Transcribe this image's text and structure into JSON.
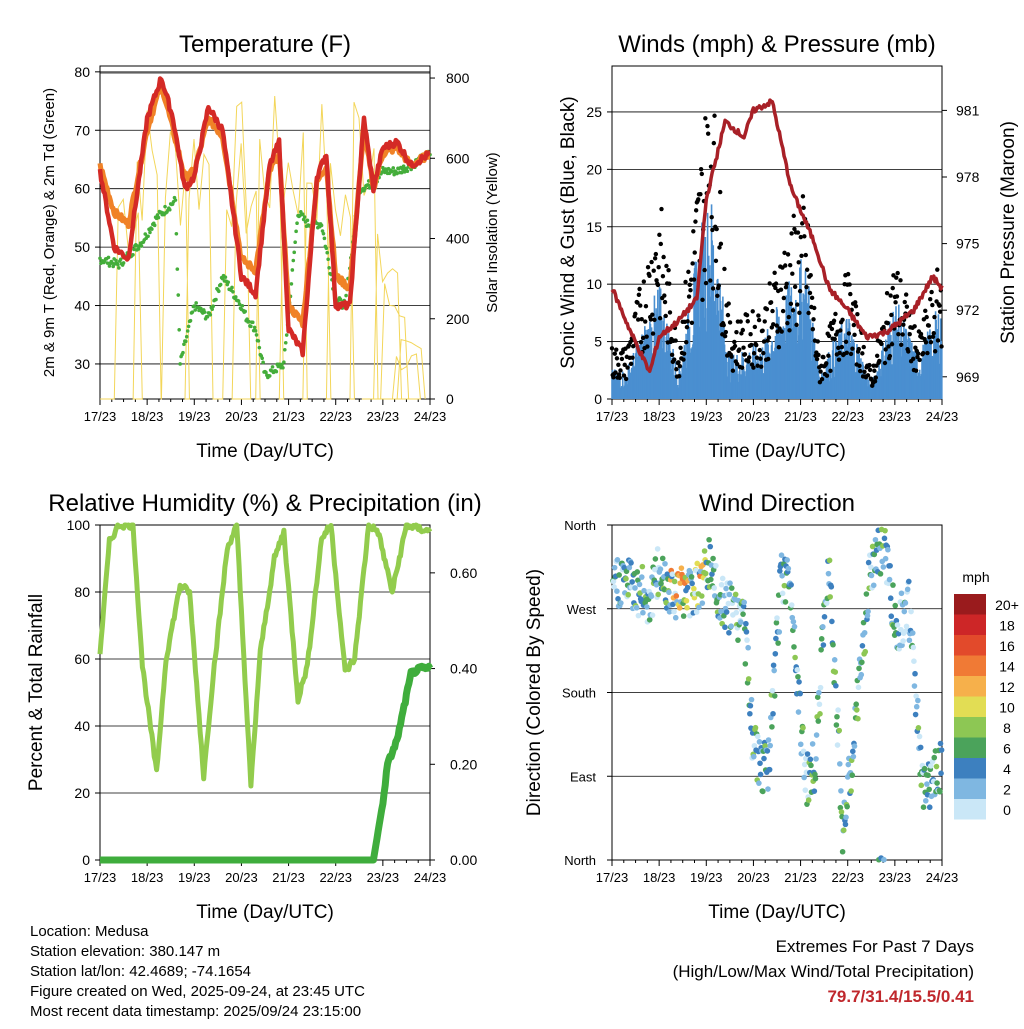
{
  "chart_data": [
    {
      "id": "temperature",
      "type": "line",
      "title": "Temperature (F)",
      "xlabel": "Time (Day/UTC)",
      "ylabel_left": "2m & 9m T (Red, Orange) & 2m Td (Green)",
      "ylabel_right": "Solar Insolation (Yellow)",
      "ylim": [
        24,
        81
      ],
      "y2lim": [
        0,
        830
      ],
      "yticks": [
        30,
        40,
        50,
        60,
        70,
        80
      ],
      "y2ticks": [
        0,
        200,
        400,
        600,
        800
      ],
      "xticks": [
        "17/23",
        "18/23",
        "19/23",
        "20/23",
        "21/23",
        "22/23",
        "23/23",
        "24/23"
      ],
      "series": [
        {
          "name": "2m T",
          "color": "#d42a26",
          "days": [
            0,
            0.3,
            0.6,
            1.0,
            1.3,
            1.55,
            1.8,
            2.0,
            2.3,
            2.6,
            3.0,
            3.3,
            3.6,
            3.8,
            4.0,
            4.3,
            4.6,
            4.8,
            5.0,
            5.3,
            5.6,
            5.8,
            6.0,
            6.3,
            6.6,
            7.0
          ],
          "values": [
            63,
            50,
            48,
            72,
            79,
            72,
            60,
            62,
            74,
            70,
            45,
            42,
            64,
            68,
            36,
            32,
            62,
            66,
            40,
            40,
            72,
            60,
            67,
            68,
            64,
            66
          ]
        },
        {
          "name": "9m T",
          "color": "#f08227",
          "days": [
            0,
            0.3,
            0.6,
            1.0,
            1.3,
            1.55,
            1.8,
            2.0,
            2.3,
            2.6,
            3.0,
            3.3,
            3.6,
            3.8,
            4.0,
            4.3,
            4.6,
            4.8,
            5.0,
            5.3,
            5.6,
            5.8,
            6.0,
            6.3,
            6.6,
            7.0
          ],
          "values": [
            64,
            56,
            54,
            70,
            78,
            70,
            62,
            63,
            72,
            69,
            48,
            46,
            63,
            66,
            40,
            37,
            61,
            64,
            45,
            43,
            70,
            60,
            66,
            67,
            64,
            66
          ]
        },
        {
          "name": "2m Td",
          "color": "#44ad3a",
          "days": [
            0,
            0.4,
            0.9,
            1.2,
            1.6,
            1.7,
            2.0,
            2.3,
            2.6,
            3.0,
            3.1,
            3.3,
            3.5,
            3.9,
            4.2,
            4.4,
            4.7,
            5.0,
            5.2,
            5.5,
            5.8,
            6.0,
            6.3,
            6.6,
            7.0
          ],
          "values": [
            48,
            47,
            51,
            55,
            58,
            30,
            40,
            38,
            45,
            40,
            38,
            36,
            28,
            30,
            56,
            54,
            54,
            41,
            40,
            60,
            61,
            63,
            63,
            64,
            66
          ]
        },
        {
          "name": "Solar Insolation",
          "color": "#f3d65a",
          "axis": "right",
          "days": [
            0.6,
            1.0,
            1.6,
            2.1,
            2.9,
            3.1,
            3.6,
            4.1,
            4.6,
            5.1,
            5.6,
            5.85,
            6.1,
            6.25,
            6.5,
            6.6
          ],
          "values": [
            620,
            760,
            740,
            760,
            750,
            650,
            760,
            740,
            760,
            620,
            830,
            0,
            420,
            310,
            120,
            150
          ]
        }
      ]
    },
    {
      "id": "winds",
      "type": "scatter",
      "title": "Winds (mph) & Pressure (mb)",
      "xlabel": "Time (Day/UTC)",
      "ylabel_left": "Sonic Wind & Gust (Blue, Black)",
      "ylabel_right": "Station Pressure (Maroon)",
      "ylim": [
        0,
        29
      ],
      "y2lim": [
        968.0,
        983.0
      ],
      "yticks": [
        0,
        5,
        10,
        15,
        20,
        25
      ],
      "y2ticks": [
        969,
        972,
        975,
        978,
        981
      ],
      "xticks": [
        "17/23",
        "18/23",
        "19/23",
        "20/23",
        "21/23",
        "22/23",
        "23/23",
        "24/23"
      ],
      "series": [
        {
          "name": "Gust",
          "color": "#000000",
          "days": [
            0.3,
            0.8,
            1.0,
            1.4,
            1.9,
            2.1,
            2.5,
            3.2,
            3.6,
            4.1,
            4.4,
            5.0,
            5.5,
            6.0,
            6.5,
            7.0
          ],
          "values": [
            4,
            12,
            16,
            4,
            20,
            26,
            6,
            7,
            12,
            16,
            3,
            10,
            2,
            11,
            5,
            11
          ]
        },
        {
          "name": "Sonic Wind",
          "color": "#4a8fd0",
          "days": [
            0.3,
            0.8,
            1.0,
            1.4,
            1.9,
            2.1,
            2.5,
            3.2,
            3.6,
            4.1,
            4.4,
            5.0,
            5.5,
            6.0,
            6.5,
            7.0
          ],
          "values": [
            2,
            6,
            8,
            2,
            12,
            14,
            3,
            4,
            7,
            10,
            2,
            6,
            1,
            7,
            3,
            7
          ]
        },
        {
          "name": "Station Pressure",
          "color": "#a82027",
          "axis": "right",
          "days": [
            0,
            0.4,
            0.8,
            1.0,
            1.4,
            1.8,
            2.0,
            2.4,
            2.8,
            3.0,
            3.4,
            3.8,
            4.0,
            4.3,
            4.6,
            5.0,
            5.4,
            5.8,
            6.0,
            6.4,
            6.8,
            7.0
          ],
          "values": [
            973.0,
            971.0,
            969.2,
            970.8,
            971.5,
            972.5,
            977.0,
            980.5,
            979.8,
            981.0,
            981.4,
            977.5,
            976.5,
            975.0,
            973.0,
            972.0,
            970.8,
            971.0,
            971.3,
            972.0,
            973.5,
            973.0
          ]
        }
      ]
    },
    {
      "id": "humidity",
      "type": "line",
      "title": "Relative Humidity (%) & Precipitation (in)",
      "xlabel": "Time (Day/UTC)",
      "ylabel_left": "Percent & Total Rainfall",
      "ylim": [
        0,
        100
      ],
      "y2lim": [
        0,
        0.7
      ],
      "yticks": [
        0,
        20,
        40,
        60,
        80,
        100
      ],
      "y2ticks": [
        "0.00",
        "0.20",
        "0.40",
        "0.60"
      ],
      "xticks": [
        "17/23",
        "18/23",
        "19/23",
        "20/23",
        "21/23",
        "22/23",
        "23/23",
        "24/23"
      ],
      "series": [
        {
          "name": "Relative Humidity",
          "color": "#92cc4d",
          "days": [
            0,
            0.2,
            0.4,
            0.7,
            0.9,
            1.2,
            1.4,
            1.7,
            1.9,
            2.2,
            2.4,
            2.7,
            2.9,
            3.2,
            3.4,
            3.7,
            3.9,
            4.2,
            4.4,
            4.7,
            4.9,
            5.2,
            5.4,
            5.7,
            5.9,
            6.2,
            6.5,
            7.0
          ],
          "values": [
            62,
            95,
            100,
            100,
            58,
            26,
            60,
            82,
            80,
            25,
            55,
            93,
            100,
            22,
            62,
            90,
            98,
            48,
            58,
            96,
            100,
            56,
            60,
            100,
            98,
            80,
            100,
            98
          ]
        },
        {
          "name": "Total Precipitation",
          "color": "#3fad3c",
          "axis": "right",
          "days": [
            0,
            5.8,
            6.0,
            6.1,
            6.3,
            6.6,
            6.8,
            7.0
          ],
          "values": [
            0.0,
            0.0,
            0.12,
            0.2,
            0.25,
            0.39,
            0.4,
            0.4
          ]
        }
      ]
    },
    {
      "id": "direction",
      "type": "scatter",
      "title": "Wind Direction",
      "xlabel": "Time (Day/UTC)",
      "ylabel_left": "Direction (Colored By Speed)",
      "yticks": [
        "North",
        "East",
        "South",
        "West",
        "North"
      ],
      "xticks": [
        "17/23",
        "18/23",
        "19/23",
        "20/23",
        "21/23",
        "22/23",
        "23/23",
        "24/23"
      ],
      "colorbar_title": "mph",
      "colorbar_labels": [
        "20+",
        "18",
        "16",
        "14",
        "12",
        "10",
        "8",
        "6",
        "4",
        "2",
        "0"
      ],
      "colorbar_colors": [
        "#9a1b1d",
        "#cd2627",
        "#e24a2b",
        "#f07a35",
        "#f6b04b",
        "#e2dd54",
        "#8dc754",
        "#4ba35b",
        "#3d80bf",
        "#7fb7e1",
        "#cae7f7"
      ],
      "series": [
        {
          "name": "direction degrees",
          "days": [
            0.3,
            0.8,
            1.0,
            1.3,
            1.6,
            1.9,
            2.1,
            2.3,
            2.8,
            3.0,
            3.3,
            3.6,
            3.8,
            4.1,
            4.3,
            4.6,
            4.9,
            5.1,
            5.5,
            5.8,
            6.0,
            6.3,
            6.6,
            6.9
          ],
          "values": [
            300,
            280,
            310,
            290,
            285,
            300,
            320,
            275,
            260,
            120,
            90,
            310,
            290,
            85,
            100,
            330,
            30,
            110,
            320,
            340,
            250,
            270,
            70,
            100
          ]
        }
      ]
    }
  ],
  "info": {
    "location": "Location: Medusa",
    "elevation": "Station elevation: 380.147 m",
    "latlon": "Station lat/lon: 42.4689; -74.1654",
    "created": "Figure created on Wed, 2025-09-24, at 23:45 UTC",
    "recent": "Most recent data timestamp: 2025/09/24 23:15:00"
  },
  "extremes": {
    "line1": "Extremes For Past 7 Days",
    "line2": "(High/Low/Max Wind/Total Precipitation)",
    "values": "79.7/31.4/15.5/0.41"
  }
}
